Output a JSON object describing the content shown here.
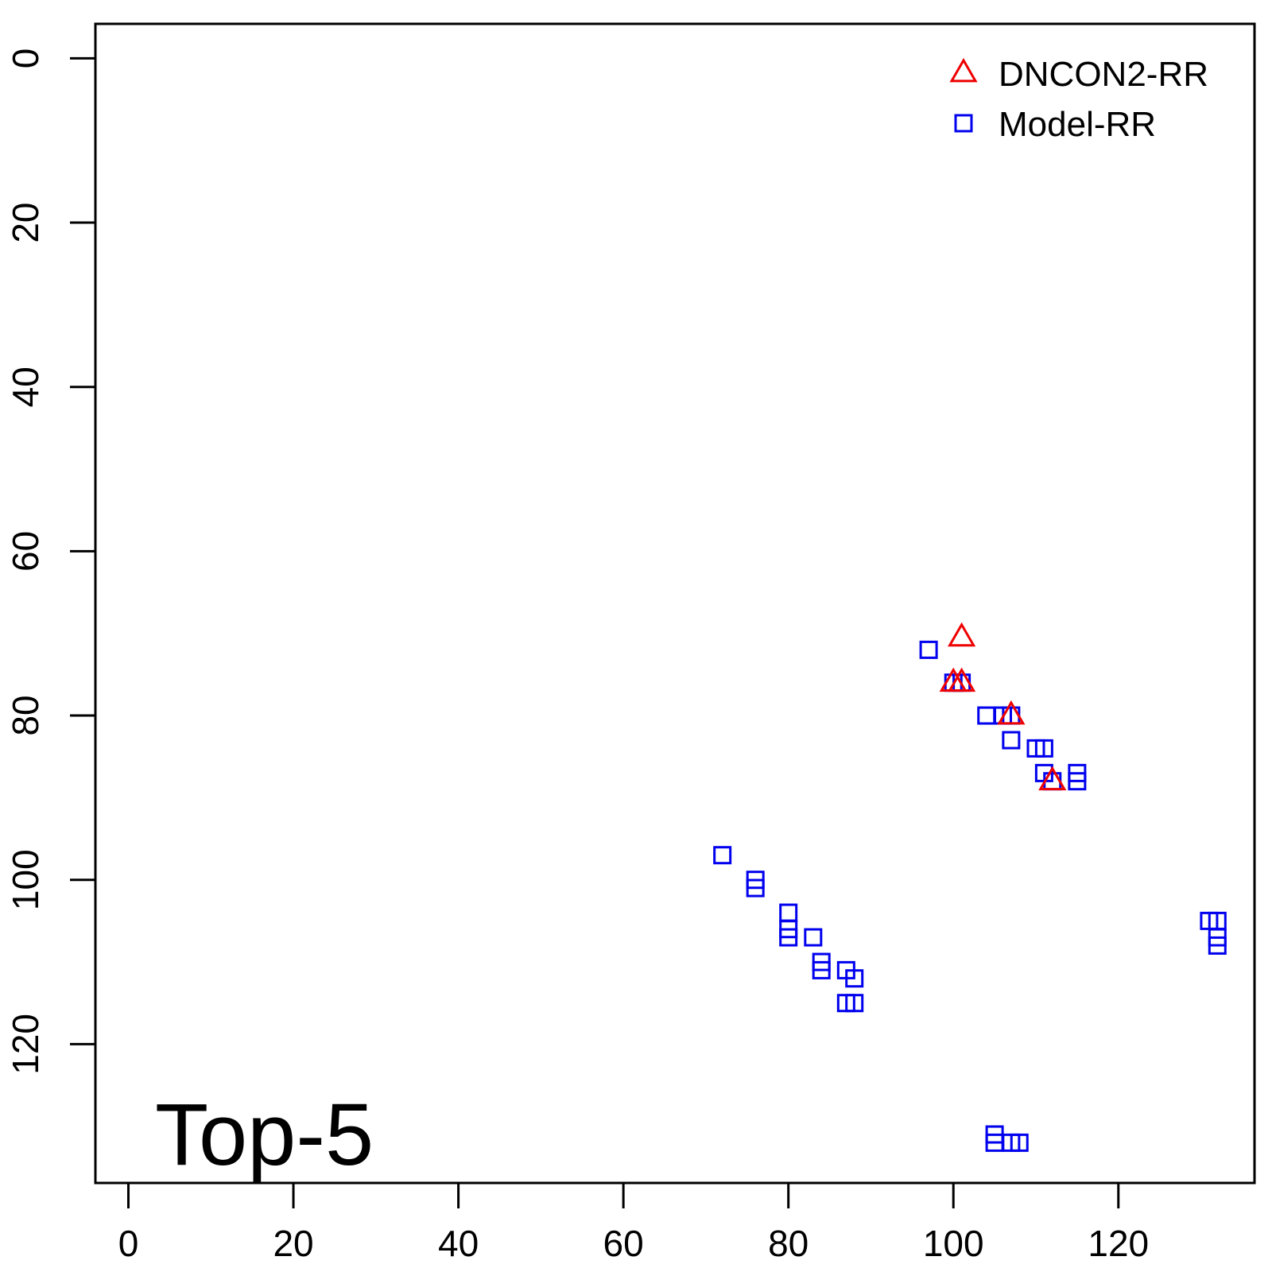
{
  "chart_data": {
    "type": "scatter",
    "title": "",
    "xlabel": "",
    "ylabel": "",
    "xlim": [
      -4,
      136.5
    ],
    "ylim": [
      136.9,
      -4.2
    ],
    "y_axis_inverted": true,
    "grid": false,
    "x_ticks": [
      "0",
      "20",
      "40",
      "60",
      "80",
      "100",
      "120"
    ],
    "y_ticks": [
      "0",
      "20",
      "40",
      "60",
      "80",
      "100",
      "120"
    ],
    "legend": {
      "position": "top-right",
      "entries": [
        "DNCON2-RR",
        "Model-RR"
      ]
    },
    "annotation": "Top-5",
    "colors": {
      "DNCON2-RR": "#ee0000",
      "Model-RR": "#0000ee",
      "frame": "#000000"
    },
    "series": [
      {
        "name": "DNCON2-RR",
        "marker": "triangle",
        "points": [
          [
            101,
            70.5
          ],
          [
            100,
            76
          ],
          [
            101,
            76
          ],
          [
            107,
            80
          ],
          [
            112,
            88
          ]
        ]
      },
      {
        "name": "Model-RR",
        "marker": "square",
        "points": [
          [
            97,
            72
          ],
          [
            100,
            76
          ],
          [
            101,
            76
          ],
          [
            104,
            80
          ],
          [
            106,
            80
          ],
          [
            107,
            80
          ],
          [
            107,
            83
          ],
          [
            110,
            84
          ],
          [
            111,
            84
          ],
          [
            111,
            87
          ],
          [
            112,
            88
          ],
          [
            115,
            87
          ],
          [
            115,
            88
          ],
          [
            72,
            97
          ],
          [
            76,
            100
          ],
          [
            76,
            101
          ],
          [
            80,
            104
          ],
          [
            80,
            106
          ],
          [
            80,
            107
          ],
          [
            83,
            107
          ],
          [
            84,
            110
          ],
          [
            84,
            111
          ],
          [
            87,
            111
          ],
          [
            88,
            112
          ],
          [
            87,
            115
          ],
          [
            88,
            115
          ],
          [
            105,
            131
          ],
          [
            105,
            132
          ],
          [
            107,
            132
          ],
          [
            108,
            132
          ],
          [
            131,
            105
          ],
          [
            132,
            105
          ],
          [
            132,
            107
          ],
          [
            132,
            108
          ]
        ]
      }
    ]
  }
}
